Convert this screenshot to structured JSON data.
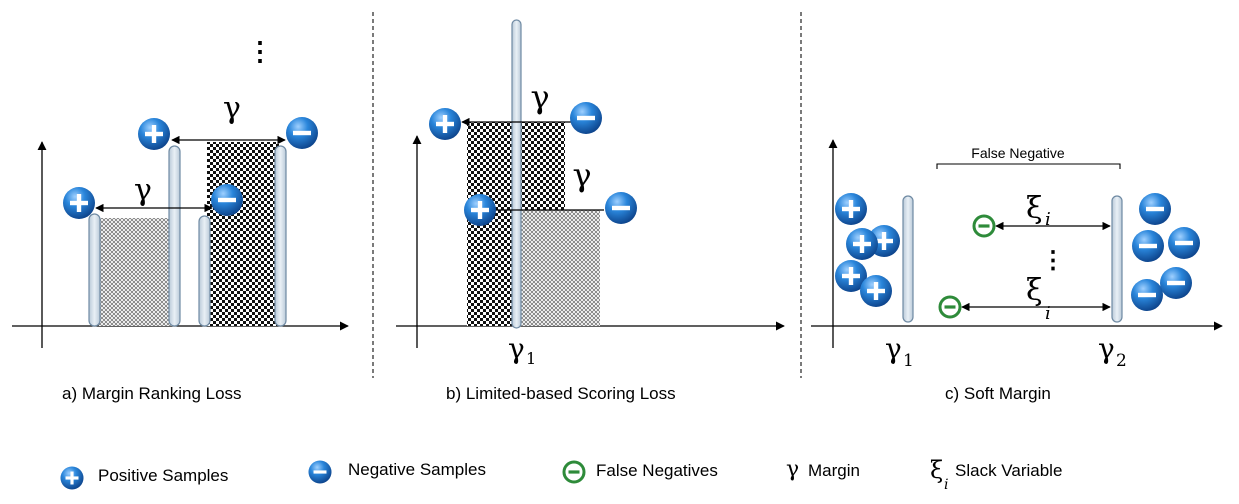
{
  "panels": {
    "a": {
      "caption": "a) Margin Ranking Loss",
      "margin_symbol": "γ",
      "ellipsis": "⋮"
    },
    "b": {
      "caption": "b) Limited-based Scoring Loss",
      "margin_symbol": "γ",
      "threshold_label": "γ",
      "threshold_sub": "1"
    },
    "c": {
      "caption": "c) Soft Margin",
      "bracket_label": "False Negative",
      "slack_symbol": "ξ",
      "slack_sub": "i",
      "ellipsis": "⋮",
      "threshold1_label": "γ",
      "threshold1_sub": "1",
      "threshold2_label": "γ",
      "threshold2_sub": "2"
    }
  },
  "legend": [
    {
      "icon": "plus-circle-icon",
      "label": "Positive Samples"
    },
    {
      "icon": "minus-circle-icon",
      "label": "Negative Samples"
    },
    {
      "icon": "false-negative-icon",
      "label": "False Negatives"
    },
    {
      "icon": "gamma-symbol",
      "symbol": "γ",
      "label": "Margin"
    },
    {
      "icon": "xi-symbol",
      "symbol": "ξ",
      "sub": "i",
      "label": "Slack Variable"
    }
  ],
  "colors": {
    "sample_blue": "#1f74c9",
    "false_negative_green": "#2e8b3a",
    "bar_fill": "#d9e3ee",
    "bar_stroke": "#6f8aa3"
  }
}
